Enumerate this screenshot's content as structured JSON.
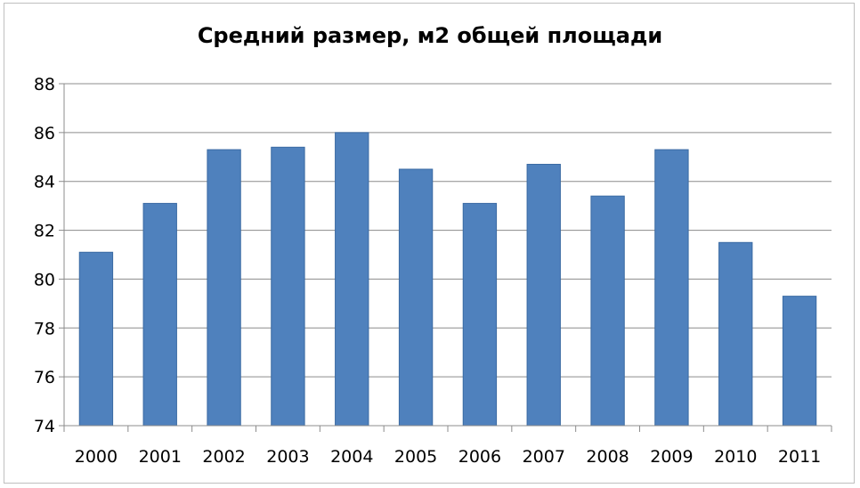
{
  "chart_data": {
    "type": "bar",
    "title": "Средний размер, м2 общей площади",
    "xlabel": "",
    "ylabel": "",
    "categories": [
      "2000",
      "2001",
      "2002",
      "2003",
      "2004",
      "2005",
      "2006",
      "2007",
      "2008",
      "2009",
      "2010",
      "2011"
    ],
    "values": [
      81.1,
      83.1,
      85.3,
      85.4,
      86.0,
      84.5,
      83.1,
      84.7,
      83.4,
      85.3,
      81.5,
      79.3
    ],
    "ylim": [
      74,
      88
    ],
    "yticks": [
      "74",
      "76",
      "78",
      "80",
      "82",
      "84",
      "86",
      "88"
    ],
    "grid": true,
    "legend": "none",
    "colors": {
      "bar": "#4f81bd",
      "bar_edge": "#3a6aa3",
      "grid": "#8c8c8c",
      "axis": "#8c8c8c"
    }
  }
}
